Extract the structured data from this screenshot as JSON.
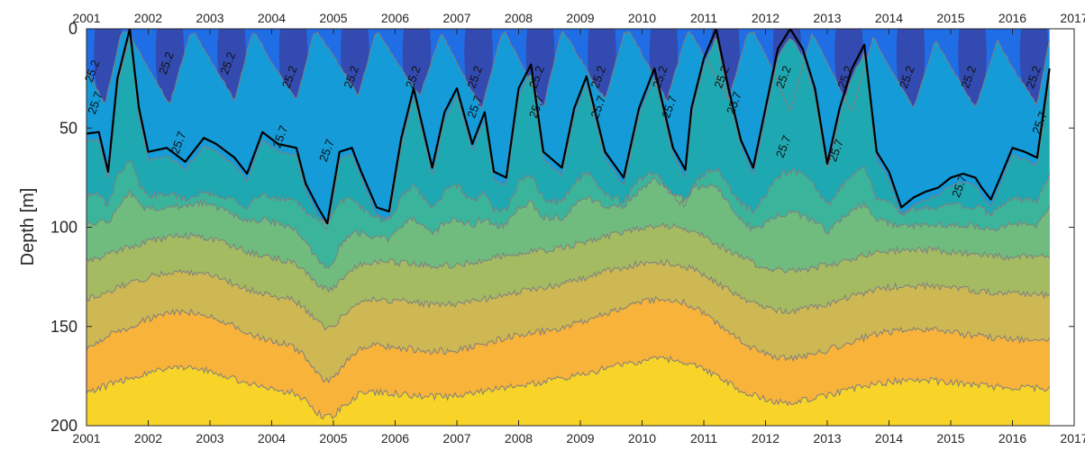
{
  "chart_data": {
    "type": "heatmap",
    "title": "",
    "xlabel": "",
    "ylabel": "Depth [m]",
    "x_ticks_top": [
      "2001",
      "2002",
      "2003",
      "2004",
      "2005",
      "2006",
      "2007",
      "2008",
      "2009",
      "2010",
      "2011",
      "2012",
      "2013",
      "2014",
      "2015",
      "2016",
      "2017"
    ],
    "x_ticks_bottom": [
      "2001",
      "2002",
      "2003",
      "2004",
      "2005",
      "2006",
      "2007",
      "2008",
      "2009",
      "2010",
      "2011",
      "2012",
      "2013",
      "2014",
      "2015",
      "2016",
      "2017"
    ],
    "y_ticks": [
      "0",
      "50",
      "100",
      "150",
      "200"
    ],
    "xlim": [
      2001,
      2017
    ],
    "ylim": [
      0,
      200
    ],
    "y_reversed": true,
    "data_extent_x": [
      2000.95,
      2016.6
    ],
    "contour_levels_labeled": [
      "25.2",
      "25.7"
    ],
    "highlight_level": "25.7",
    "colors": {
      "deep_purple": "#3b3f9e",
      "blue": "#1f6ee6",
      "light_blue": "#149bd8",
      "teal": "#1ea9b2",
      "teal_green": "#3ab59b",
      "green": "#6fbc7e",
      "olive": "#a5bb62",
      "khaki": "#cdb853",
      "orange": "#f7b33a",
      "yellow": "#f8d429",
      "contour_gray": "#7f7f7f",
      "highlight_line": "#000000"
    },
    "isolines": [
      {
        "name": "25.7",
        "x": [
          2000.95,
          2001.2,
          2001.35,
          2001.5,
          2001.7,
          2001.85,
          2002.0,
          2002.3,
          2002.6,
          2002.9,
          2003.1,
          2003.4,
          2003.6,
          2003.85,
          2004.1,
          2004.4,
          2004.55,
          2004.75,
          2004.9,
          2005.1,
          2005.3,
          2005.45,
          2005.7,
          2005.9,
          2006.1,
          2006.3,
          2006.6,
          2006.8,
          2007.0,
          2007.25,
          2007.45,
          2007.6,
          2007.8,
          2008.0,
          2008.2,
          2008.4,
          2008.7,
          2008.9,
          2009.1,
          2009.4,
          2009.7,
          2009.95,
          2010.2,
          2010.5,
          2010.7,
          2010.8,
          2011.0,
          2011.2,
          2011.4,
          2011.6,
          2011.8,
          2012.0,
          2012.2,
          2012.4,
          2012.6,
          2012.8,
          2013.0,
          2013.2,
          2013.4,
          2013.6,
          2013.8,
          2014.0,
          2014.2,
          2014.4,
          2014.6,
          2014.8,
          2015.0,
          2015.2,
          2015.4,
          2015.5,
          2015.65,
          2015.8,
          2016.0,
          2016.2,
          2016.4,
          2016.6
        ],
        "y": [
          53,
          52,
          72,
          25,
          0,
          40,
          62,
          60,
          67,
          55,
          58,
          65,
          73,
          52,
          58,
          60,
          78,
          90,
          98,
          62,
          60,
          72,
          90,
          92,
          55,
          30,
          70,
          42,
          30,
          58,
          42,
          72,
          75,
          30,
          18,
          62,
          70,
          40,
          24,
          62,
          75,
          40,
          20,
          60,
          71,
          40,
          15,
          0,
          30,
          56,
          70,
          40,
          10,
          0,
          10,
          30,
          68,
          40,
          20,
          8,
          62,
          72,
          90,
          85,
          82,
          80,
          75,
          73,
          75,
          80,
          86,
          75,
          60,
          62,
          65,
          20
        ]
      },
      {
        "name": "25.2",
        "x": [
          2000.95,
          2001.3,
          2001.6,
          2002.0,
          2002.35,
          2002.7,
          2003.05,
          2003.4,
          2003.7,
          2004.05,
          2004.4,
          2004.7,
          2005.05,
          2005.4,
          2005.7,
          2006.05,
          2006.4,
          2006.75,
          2007.05,
          2007.4,
          2007.75,
          2008.05,
          2008.4,
          2008.7,
          2009.05,
          2009.4,
          2009.75,
          2010.05,
          2010.4,
          2010.75,
          2011.05,
          2011.4,
          2011.75,
          2012.05,
          2012.4,
          2012.75,
          2013.05,
          2013.4,
          2013.75,
          2014.05,
          2014.4,
          2014.75,
          2015.05,
          2015.4,
          2015.75,
          2016.05,
          2016.4,
          2016.6
        ],
        "y": [
          25,
          46,
          5,
          28,
          46,
          8,
          26,
          44,
          8,
          28,
          44,
          8,
          24,
          42,
          8,
          26,
          42,
          10,
          28,
          48,
          8,
          26,
          48,
          8,
          26,
          44,
          6,
          24,
          44,
          8,
          24,
          44,
          6,
          24,
          50,
          10,
          28,
          50,
          12,
          30,
          48,
          14,
          30,
          48,
          14,
          30,
          46,
          14
        ]
      }
    ],
    "contour_label_positions": [
      {
        "x": 2001.15,
        "y": 22,
        "text": "25.2"
      },
      {
        "x": 2001.2,
        "y": 38,
        "text": "25.7"
      },
      {
        "x": 2002.35,
        "y": 18,
        "text": "25.2"
      },
      {
        "x": 2003.35,
        "y": 18,
        "text": "25.2"
      },
      {
        "x": 2004.35,
        "y": 25,
        "text": "25.2"
      },
      {
        "x": 2005.35,
        "y": 25,
        "text": "25.2"
      },
      {
        "x": 2006.35,
        "y": 25,
        "text": "25.2"
      },
      {
        "x": 2007.35,
        "y": 25,
        "text": "25.2"
      },
      {
        "x": 2008.35,
        "y": 25,
        "text": "25.2"
      },
      {
        "x": 2009.35,
        "y": 25,
        "text": "25.2"
      },
      {
        "x": 2010.35,
        "y": 25,
        "text": "25.2"
      },
      {
        "x": 2011.35,
        "y": 25,
        "text": "25.2"
      },
      {
        "x": 2012.35,
        "y": 25,
        "text": "25.2"
      },
      {
        "x": 2013.35,
        "y": 25,
        "text": "25.2"
      },
      {
        "x": 2014.35,
        "y": 25,
        "text": "25.2"
      },
      {
        "x": 2015.35,
        "y": 25,
        "text": "25.2"
      },
      {
        "x": 2016.4,
        "y": 25,
        "text": "25.2"
      },
      {
        "x": 2002.55,
        "y": 58,
        "text": "25.7"
      },
      {
        "x": 2004.2,
        "y": 55,
        "text": "25.7"
      },
      {
        "x": 2004.95,
        "y": 62,
        "text": "25.7"
      },
      {
        "x": 2007.35,
        "y": 40,
        "text": "25.7"
      },
      {
        "x": 2008.35,
        "y": 40,
        "text": "25.7"
      },
      {
        "x": 2009.35,
        "y": 40,
        "text": "25.7"
      },
      {
        "x": 2010.5,
        "y": 40,
        "text": "25.7"
      },
      {
        "x": 2011.55,
        "y": 38,
        "text": "25.7"
      },
      {
        "x": 2012.35,
        "y": 60,
        "text": "25.7"
      },
      {
        "x": 2013.2,
        "y": 62,
        "text": "25.7"
      },
      {
        "x": 2015.2,
        "y": 80,
        "text": "25.7"
      },
      {
        "x": 2016.5,
        "y": 48,
        "text": "25.7"
      }
    ],
    "grid": false,
    "legend": "none"
  }
}
